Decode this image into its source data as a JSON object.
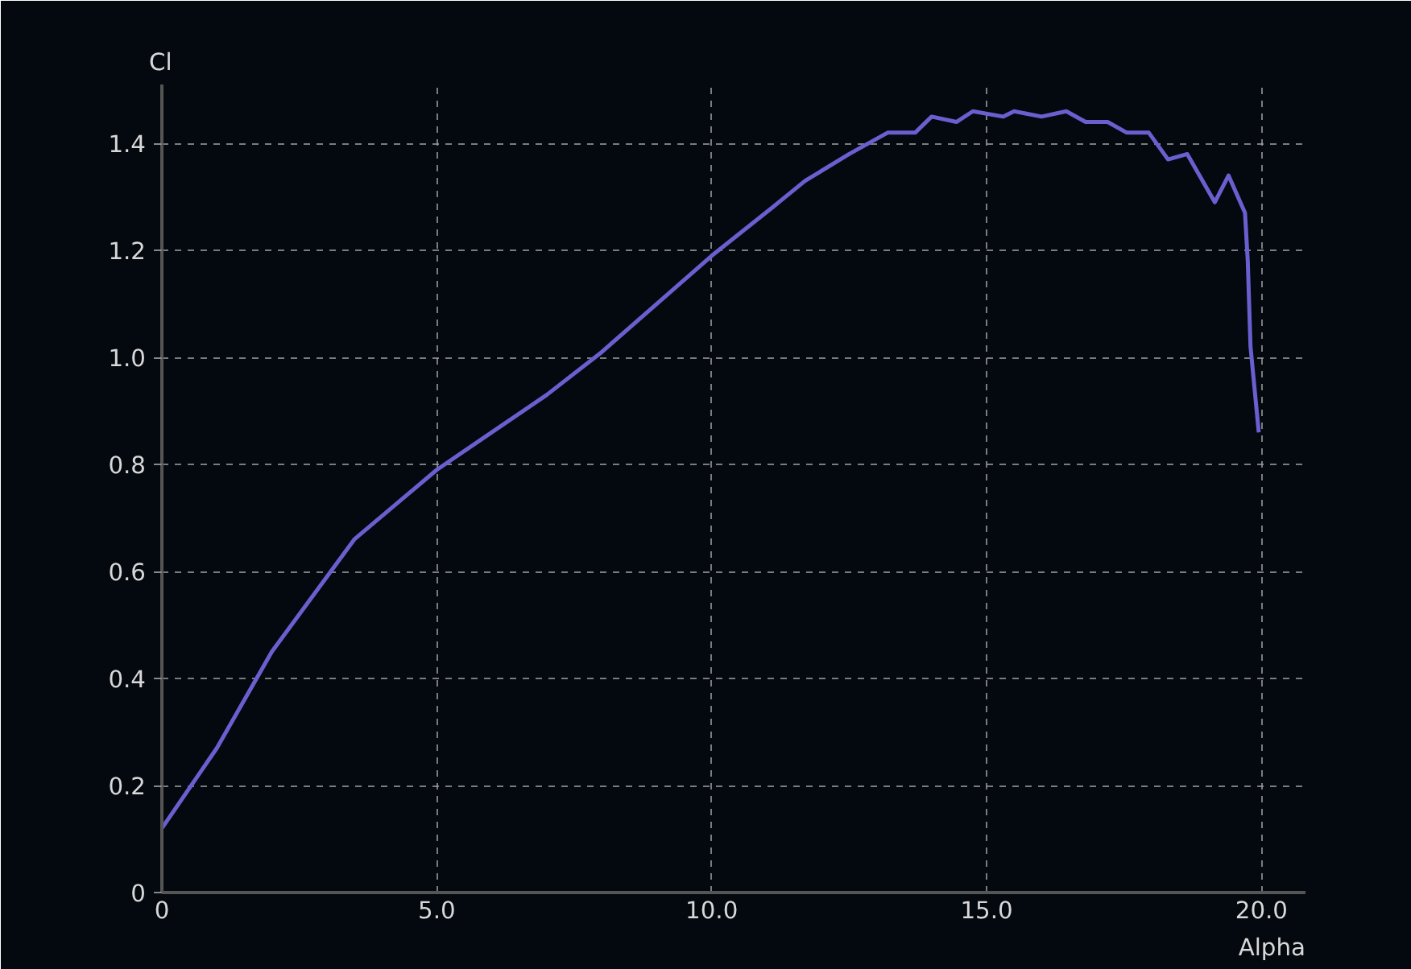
{
  "chart_data": {
    "type": "line",
    "xlabel": "Alpha",
    "ylabel": "Cl",
    "x": [
      0,
      1,
      2,
      3.5,
      5,
      6,
      7,
      8,
      9,
      10,
      11.1,
      11.7,
      12.5,
      13.2,
      13.7,
      14.0,
      14.45,
      14.75,
      15.3,
      15.5,
      16.0,
      16.45,
      16.8,
      17.2,
      17.55,
      17.95,
      18.3,
      18.65,
      19.15,
      19.4,
      19.7,
      19.75,
      19.8,
      19.95
    ],
    "series": [
      {
        "color": "#6a5fcf",
        "values": [
          0.12,
          0.27,
          0.45,
          0.66,
          0.79,
          0.86,
          0.93,
          1.01,
          1.1,
          1.19,
          1.28,
          1.33,
          1.38,
          1.42,
          1.42,
          1.45,
          1.44,
          1.46,
          1.45,
          1.46,
          1.45,
          1.46,
          1.44,
          1.44,
          1.42,
          1.42,
          1.37,
          1.38,
          1.29,
          1.34,
          1.27,
          1.18,
          1.02,
          0.86
        ]
      }
    ],
    "xlim": [
      0,
      20.8
    ],
    "ylim": [
      0,
      1.51
    ],
    "xticks": [
      0,
      {
        "value": 5,
        "label": "5.0"
      },
      {
        "value": 10,
        "label": "10.0"
      },
      {
        "value": 15,
        "label": "15.0"
      },
      {
        "value": 20,
        "label": "20.0"
      }
    ],
    "yticks": [
      0,
      0.2,
      0.4,
      0.6,
      0.8,
      {
        "value": 1,
        "label": "1.0"
      },
      1.2,
      1.4
    ],
    "grid": true,
    "marker": "none",
    "line_style": "solid"
  }
}
